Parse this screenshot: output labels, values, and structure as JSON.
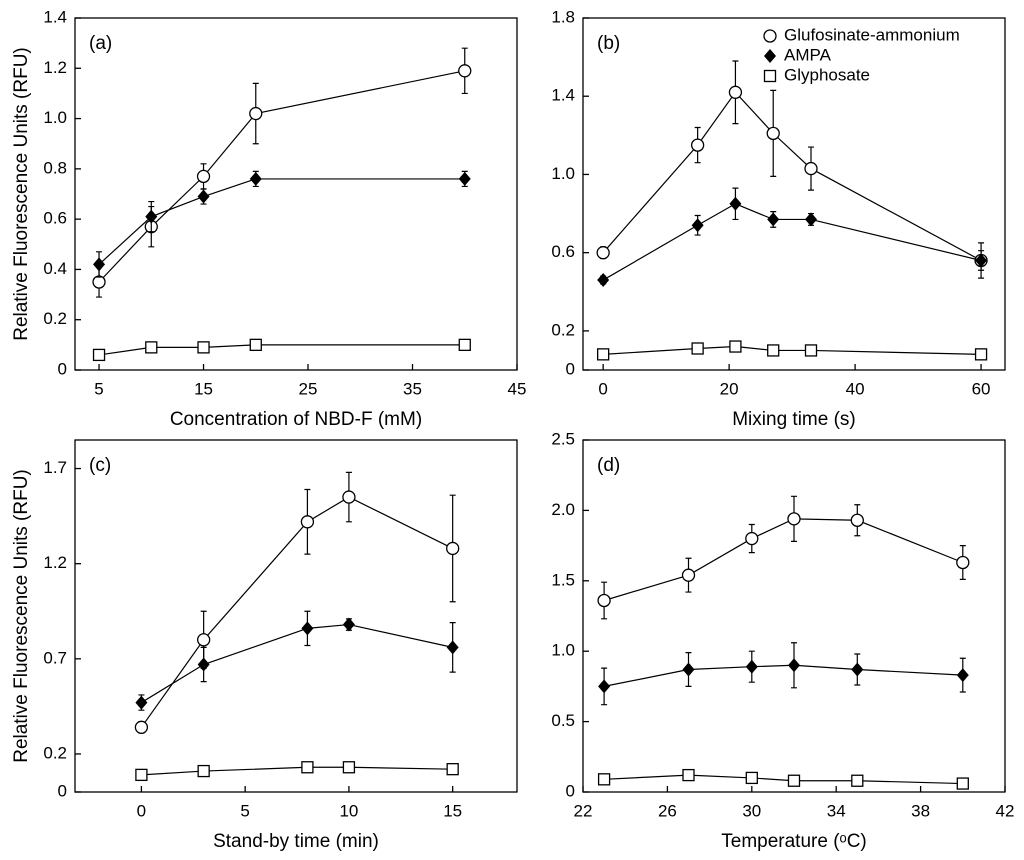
{
  "chart_data": [
    {
      "type": "line",
      "label": "(a)",
      "xlabel": "Concentration of NBD-F (mM)",
      "ylabel": "Relative Fluorescence Units (RFU)",
      "x": [
        5,
        10,
        15,
        20,
        40
      ],
      "xlim": [
        2.7,
        45
      ],
      "xticks": [
        5,
        15,
        25,
        35,
        45
      ],
      "ylim": [
        0,
        1.4
      ],
      "yticks": [
        0,
        0.2,
        0.4,
        0.6,
        0.8,
        {
          "value": 1,
          "label": "1.0"
        },
        1.2,
        1.4
      ],
      "series": [
        {
          "marker": "circle",
          "color": "#000000",
          "values": [
            0.35,
            0.57,
            0.77,
            1.02,
            1.19
          ],
          "errors": [
            0.06,
            0.08,
            0.05,
            0.12,
            0.09
          ]
        },
        {
          "marker": "diamond",
          "color": "#000000",
          "values": [
            0.42,
            0.61,
            0.69,
            0.76,
            0.76
          ],
          "errors": [
            0.05,
            0.06,
            0.03,
            0.03,
            0.03
          ]
        },
        {
          "marker": "square",
          "color": "#000000",
          "values": [
            0.06,
            0.09,
            0.09,
            0.1,
            0.1
          ],
          "errors": [
            0.01,
            0.01,
            0.01,
            0.01,
            0.01
          ]
        }
      ]
    },
    {
      "type": "line",
      "label": "(b)",
      "xlabel": "Mixing time (s)",
      "legend": "upper right",
      "x": [
        0,
        15,
        21,
        27,
        33,
        60
      ],
      "xlim": [
        -3.2,
        63.8
      ],
      "xticks": [
        0,
        20,
        40,
        60
      ],
      "ylim": [
        0,
        1.8
      ],
      "yticks": [
        0,
        0.2,
        0.6,
        {
          "value": 1,
          "label": "1.0"
        },
        1.4,
        1.8
      ],
      "series": [
        {
          "name": "Glufosinate-ammonium",
          "marker": "circle",
          "color": "#000000",
          "values": [
            0.6,
            1.15,
            1.42,
            1.21,
            1.03,
            0.56
          ],
          "errors": [
            0.03,
            0.09,
            0.16,
            0.22,
            0.11,
            0.09
          ]
        },
        {
          "name": "AMPA",
          "marker": "diamond",
          "color": "#000000",
          "values": [
            0.46,
            0.74,
            0.85,
            0.77,
            0.77,
            0.56
          ],
          "errors": [
            0.02,
            0.05,
            0.08,
            0.04,
            0.03,
            0.05
          ]
        },
        {
          "name": "Glyphosate",
          "marker": "square",
          "color": "#000000",
          "values": [
            0.08,
            0.11,
            0.12,
            0.1,
            0.1,
            0.08
          ],
          "errors": [
            0.01,
            0.01,
            0.02,
            0.01,
            0.01,
            0.01
          ]
        }
      ]
    },
    {
      "type": "line",
      "label": "(c)",
      "xlabel": "Stand-by time (min)",
      "ylabel": "Relative Fluorescence Units (RFU)",
      "x": [
        0,
        3,
        8,
        10,
        15
      ],
      "xlim": [
        -3.2,
        18.1
      ],
      "xticks": [
        0,
        5,
        10,
        15
      ],
      "ylim": [
        0,
        1.85
      ],
      "yticks": [
        0,
        0.2,
        0.7,
        1.2,
        1.7
      ],
      "series": [
        {
          "marker": "circle",
          "color": "#000000",
          "values": [
            0.34,
            0.8,
            1.42,
            1.55,
            1.28
          ],
          "errors": [
            0.03,
            0.15,
            0.17,
            0.13,
            0.28
          ]
        },
        {
          "marker": "diamond",
          "color": "#000000",
          "values": [
            0.47,
            0.67,
            0.86,
            0.88,
            0.76
          ],
          "errors": [
            0.04,
            0.09,
            0.09,
            0.03,
            0.13
          ]
        },
        {
          "marker": "square",
          "color": "#000000",
          "values": [
            0.09,
            0.11,
            0.13,
            0.13,
            0.12
          ],
          "errors": [
            0.01,
            0.02,
            0.02,
            0.01,
            0.02
          ]
        }
      ]
    },
    {
      "type": "line",
      "label": "(d)",
      "xlabel": "Temperature (ᵒC)",
      "x": [
        23,
        27,
        30,
        32,
        35,
        40
      ],
      "xlim": [
        22,
        42
      ],
      "xticks": [
        22,
        26,
        30,
        34,
        38,
        42
      ],
      "ylim": [
        0,
        2.5
      ],
      "yticks": [
        0,
        0.5,
        {
          "value": 1,
          "label": "1.0"
        },
        1.5,
        {
          "value": 2,
          "label": "2.0"
        },
        2.5
      ],
      "series": [
        {
          "marker": "circle",
          "color": "#000000",
          "values": [
            1.36,
            1.54,
            1.8,
            1.94,
            1.93,
            1.63
          ],
          "errors": [
            0.13,
            0.12,
            0.1,
            0.16,
            0.11,
            0.12
          ]
        },
        {
          "marker": "diamond",
          "color": "#000000",
          "values": [
            0.75,
            0.87,
            0.89,
            0.9,
            0.87,
            0.83
          ],
          "errors": [
            0.13,
            0.12,
            0.11,
            0.16,
            0.11,
            0.12
          ]
        },
        {
          "marker": "square",
          "color": "#000000",
          "values": [
            0.09,
            0.12,
            0.1,
            0.08,
            0.08,
            0.06
          ],
          "errors": [
            0.01,
            0.01,
            0.01,
            0.02,
            0.01,
            0.01
          ]
        }
      ]
    }
  ]
}
